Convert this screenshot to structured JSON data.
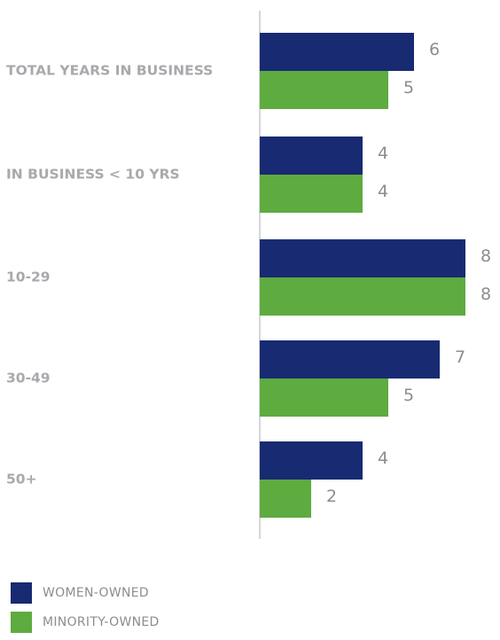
{
  "chart_data": {
    "type": "bar",
    "orientation": "horizontal",
    "categories": [
      "TOTAL YEARS IN BUSINESS",
      "IN BUSINESS < 10 YRS",
      "10-29",
      "30-49",
      "50+"
    ],
    "series": [
      {
        "name": "WOMEN-OWNED",
        "values": [
          6,
          4,
          8,
          7,
          4
        ],
        "color": "#182a72"
      },
      {
        "name": "MINORITY-OWNED",
        "values": [
          5,
          4,
          8,
          5,
          2
        ],
        "color": "#5eab40"
      }
    ],
    "xlim": [
      0,
      8
    ],
    "grid": false,
    "legend_position": "bottom-left",
    "axis_color": "#c7c8ca"
  }
}
